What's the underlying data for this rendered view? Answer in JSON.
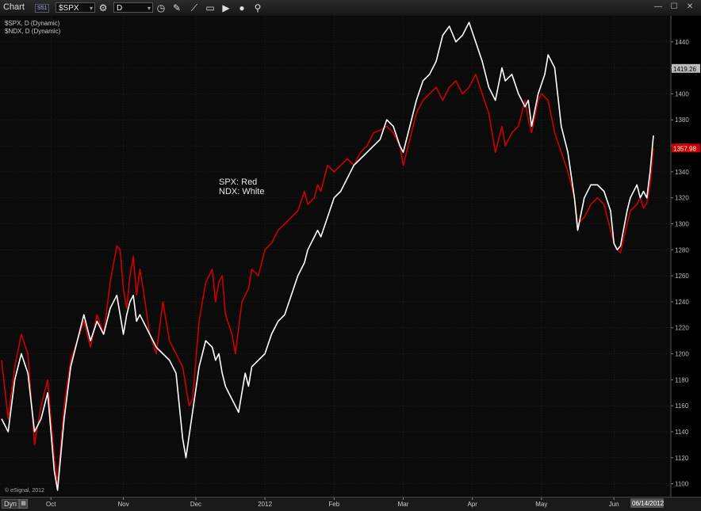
{
  "toolbar": {
    "title": "Chart",
    "badge": "S51",
    "symbol": "$SPX",
    "interval": "D"
  },
  "legend": {
    "line1": "$SPX, D (Dynamic)",
    "line2": "$NDX, D (Dynamic)"
  },
  "annotation": {
    "spx": "SPX:  Red",
    "ndx": "NDX:  White"
  },
  "footer": {
    "dyn": "Dyn",
    "copyright": "© eSignal, 2012"
  },
  "colors": {
    "background": "#0b0b0b",
    "spx": "#cc0000",
    "ndx": "#ffffff",
    "grid": "#2a2a2a"
  },
  "chart_data": {
    "type": "line",
    "ylim": [
      1090,
      1460
    ],
    "y_ticks": [
      1100,
      1120,
      1140,
      1160,
      1180,
      1200,
      1220,
      1240,
      1260,
      1280,
      1300,
      1320,
      1340,
      1360,
      1380,
      1400,
      1420,
      1440
    ],
    "x_ticks": [
      {
        "label": "Oct",
        "x": 15
      },
      {
        "label": "Nov",
        "x": 37
      },
      {
        "label": "Dec",
        "x": 59
      },
      {
        "label": "2012",
        "x": 80
      },
      {
        "label": "Feb",
        "x": 101
      },
      {
        "label": "Mar",
        "x": 122
      },
      {
        "label": "Apr",
        "x": 143
      },
      {
        "label": "May",
        "x": 164
      },
      {
        "label": "Jun",
        "x": 186
      },
      {
        "label": "06/14/2012",
        "x": 196
      }
    ],
    "price_labels": [
      {
        "value": 1419.26,
        "text": "1419.26",
        "color": "#bbbbbb",
        "text_color": "#000000"
      },
      {
        "value": 1357.98,
        "text": "1357.98",
        "color": "#cc0000",
        "text_color": "#ffffff"
      }
    ],
    "series": [
      {
        "color": "#cc0000",
        "points": [
          [
            0,
            1195
          ],
          [
            2,
            1150
          ],
          [
            4,
            1190
          ],
          [
            6,
            1215
          ],
          [
            8,
            1200
          ],
          [
            10,
            1130
          ],
          [
            12,
            1160
          ],
          [
            14,
            1180
          ],
          [
            16,
            1120
          ],
          [
            17,
            1100
          ],
          [
            19,
            1160
          ],
          [
            21,
            1195
          ],
          [
            23,
            1210
          ],
          [
            25,
            1225
          ],
          [
            27,
            1205
          ],
          [
            29,
            1230
          ],
          [
            31,
            1215
          ],
          [
            33,
            1255
          ],
          [
            35,
            1283
          ],
          [
            36,
            1280
          ],
          [
            37,
            1250
          ],
          [
            38,
            1235
          ],
          [
            39,
            1260
          ],
          [
            40,
            1275
          ],
          [
            41,
            1245
          ],
          [
            42,
            1265
          ],
          [
            43,
            1250
          ],
          [
            45,
            1215
          ],
          [
            47,
            1200
          ],
          [
            49,
            1240
          ],
          [
            51,
            1210
          ],
          [
            53,
            1200
          ],
          [
            55,
            1190
          ],
          [
            57,
            1160
          ],
          [
            58,
            1165
          ],
          [
            60,
            1225
          ],
          [
            62,
            1255
          ],
          [
            64,
            1265
          ],
          [
            65,
            1240
          ],
          [
            66,
            1255
          ],
          [
            67,
            1260
          ],
          [
            68,
            1230
          ],
          [
            70,
            1215
          ],
          [
            71,
            1200
          ],
          [
            73,
            1240
          ],
          [
            75,
            1250
          ],
          [
            76,
            1265
          ],
          [
            78,
            1260
          ],
          [
            80,
            1280
          ],
          [
            82,
            1285
          ],
          [
            84,
            1295
          ],
          [
            86,
            1300
          ],
          [
            88,
            1305
          ],
          [
            90,
            1310
          ],
          [
            92,
            1325
          ],
          [
            93,
            1315
          ],
          [
            95,
            1320
          ],
          [
            96,
            1330
          ],
          [
            97,
            1325
          ],
          [
            99,
            1345
          ],
          [
            101,
            1340
          ],
          [
            103,
            1345
          ],
          [
            105,
            1350
          ],
          [
            107,
            1345
          ],
          [
            109,
            1355
          ],
          [
            111,
            1360
          ],
          [
            113,
            1370
          ],
          [
            115,
            1372
          ],
          [
            117,
            1375
          ],
          [
            119,
            1370
          ],
          [
            121,
            1360
          ],
          [
            122,
            1345
          ],
          [
            124,
            1365
          ],
          [
            126,
            1385
          ],
          [
            128,
            1395
          ],
          [
            130,
            1400
          ],
          [
            132,
            1405
          ],
          [
            134,
            1395
          ],
          [
            136,
            1405
          ],
          [
            138,
            1410
          ],
          [
            140,
            1400
          ],
          [
            142,
            1405
          ],
          [
            144,
            1415
          ],
          [
            146,
            1400
          ],
          [
            148,
            1385
          ],
          [
            150,
            1355
          ],
          [
            152,
            1375
          ],
          [
            153,
            1360
          ],
          [
            155,
            1370
          ],
          [
            157,
            1375
          ],
          [
            159,
            1395
          ],
          [
            160,
            1380
          ],
          [
            161,
            1370
          ],
          [
            163,
            1395
          ],
          [
            164,
            1400
          ],
          [
            166,
            1395
          ],
          [
            168,
            1370
          ],
          [
            170,
            1355
          ],
          [
            172,
            1340
          ],
          [
            174,
            1320
          ],
          [
            175,
            1300
          ],
          [
            177,
            1305
          ],
          [
            179,
            1315
          ],
          [
            181,
            1320
          ],
          [
            183,
            1315
          ],
          [
            185,
            1295
          ],
          [
            186,
            1285
          ],
          [
            187,
            1280
          ],
          [
            188,
            1278
          ],
          [
            190,
            1300
          ],
          [
            191,
            1310
          ],
          [
            193,
            1315
          ],
          [
            194,
            1320
          ],
          [
            195,
            1312
          ],
          [
            196,
            1316
          ],
          [
            197,
            1330
          ],
          [
            198,
            1358
          ]
        ]
      },
      {
        "color": "#ffffff",
        "points": [
          [
            0,
            1150
          ],
          [
            2,
            1140
          ],
          [
            4,
            1180
          ],
          [
            6,
            1200
          ],
          [
            8,
            1185
          ],
          [
            10,
            1140
          ],
          [
            12,
            1150
          ],
          [
            14,
            1170
          ],
          [
            16,
            1110
          ],
          [
            17,
            1095
          ],
          [
            19,
            1150
          ],
          [
            21,
            1190
          ],
          [
            23,
            1210
          ],
          [
            25,
            1230
          ],
          [
            27,
            1210
          ],
          [
            29,
            1225
          ],
          [
            31,
            1215
          ],
          [
            33,
            1235
          ],
          [
            35,
            1245
          ],
          [
            36,
            1230
          ],
          [
            37,
            1215
          ],
          [
            38,
            1230
          ],
          [
            39,
            1240
          ],
          [
            40,
            1245
          ],
          [
            41,
            1225
          ],
          [
            42,
            1230
          ],
          [
            43,
            1225
          ],
          [
            45,
            1215
          ],
          [
            47,
            1205
          ],
          [
            49,
            1200
          ],
          [
            51,
            1195
          ],
          [
            53,
            1185
          ],
          [
            55,
            1135
          ],
          [
            56,
            1120
          ],
          [
            58,
            1155
          ],
          [
            60,
            1190
          ],
          [
            62,
            1210
          ],
          [
            64,
            1205
          ],
          [
            65,
            1195
          ],
          [
            66,
            1200
          ],
          [
            67,
            1185
          ],
          [
            68,
            1175
          ],
          [
            70,
            1165
          ],
          [
            72,
            1155
          ],
          [
            74,
            1185
          ],
          [
            75,
            1175
          ],
          [
            76,
            1190
          ],
          [
            78,
            1195
          ],
          [
            80,
            1200
          ],
          [
            82,
            1215
          ],
          [
            84,
            1225
          ],
          [
            86,
            1230
          ],
          [
            88,
            1245
          ],
          [
            90,
            1260
          ],
          [
            92,
            1270
          ],
          [
            93,
            1280
          ],
          [
            95,
            1290
          ],
          [
            96,
            1295
          ],
          [
            97,
            1290
          ],
          [
            99,
            1305
          ],
          [
            101,
            1320
          ],
          [
            103,
            1325
          ],
          [
            105,
            1335
          ],
          [
            107,
            1345
          ],
          [
            109,
            1350
          ],
          [
            111,
            1355
          ],
          [
            113,
            1360
          ],
          [
            115,
            1365
          ],
          [
            117,
            1380
          ],
          [
            119,
            1375
          ],
          [
            121,
            1360
          ],
          [
            122,
            1355
          ],
          [
            124,
            1375
          ],
          [
            126,
            1395
          ],
          [
            128,
            1410
          ],
          [
            130,
            1415
          ],
          [
            132,
            1425
          ],
          [
            134,
            1445
          ],
          [
            136,
            1452
          ],
          [
            138,
            1440
          ],
          [
            140,
            1445
          ],
          [
            142,
            1455
          ],
          [
            144,
            1440
          ],
          [
            146,
            1425
          ],
          [
            148,
            1405
          ],
          [
            150,
            1395
          ],
          [
            152,
            1420
          ],
          [
            153,
            1410
          ],
          [
            155,
            1415
          ],
          [
            157,
            1400
          ],
          [
            159,
            1390
          ],
          [
            160,
            1395
          ],
          [
            161,
            1375
          ],
          [
            163,
            1400
          ],
          [
            165,
            1415
          ],
          [
            166,
            1430
          ],
          [
            168,
            1420
          ],
          [
            170,
            1375
          ],
          [
            172,
            1355
          ],
          [
            174,
            1320
          ],
          [
            175,
            1295
          ],
          [
            177,
            1320
          ],
          [
            179,
            1330
          ],
          [
            181,
            1330
          ],
          [
            183,
            1325
          ],
          [
            185,
            1310
          ],
          [
            186,
            1285
          ],
          [
            187,
            1280
          ],
          [
            188,
            1283
          ],
          [
            190,
            1310
          ],
          [
            191,
            1320
          ],
          [
            193,
            1330
          ],
          [
            194,
            1320
          ],
          [
            195,
            1325
          ],
          [
            196,
            1320
          ],
          [
            197,
            1340
          ],
          [
            198,
            1368
          ]
        ]
      }
    ]
  }
}
